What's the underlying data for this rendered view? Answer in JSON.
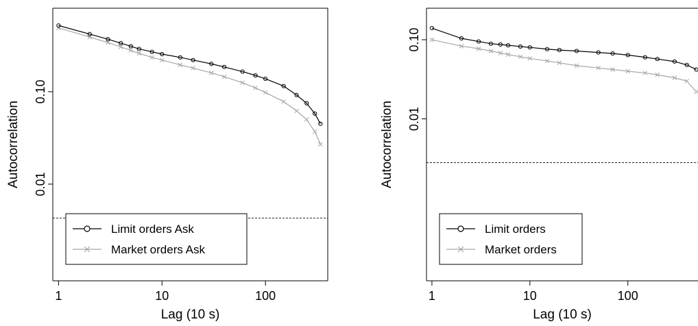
{
  "chart_data": [
    {
      "type": "line",
      "xlabel": "Lag (10 s)",
      "ylabel": "Autocorrelation",
      "x_scale": "log",
      "y_scale": "log",
      "xlim": [
        0.88,
        400
      ],
      "ylim": [
        0.0009,
        0.8
      ],
      "x_ticks": [
        {
          "value": 1,
          "label": "1"
        },
        {
          "value": 10,
          "label": "10"
        },
        {
          "value": 100,
          "label": "100"
        }
      ],
      "y_ticks": [
        {
          "value": 0.01,
          "label": "0.01"
        },
        {
          "value": 0.1,
          "label": "0.10"
        }
      ],
      "reference_line": 0.0043,
      "legend_position": "bottom-left",
      "series": [
        {
          "name": "Limit orders Ask",
          "color": "#000000",
          "marker": "circle",
          "x": [
            1,
            2,
            3,
            4,
            5,
            6,
            8,
            10,
            15,
            20,
            30,
            40,
            60,
            80,
            100,
            150,
            200,
            250,
            300,
            340
          ],
          "y": [
            0.52,
            0.42,
            0.37,
            0.335,
            0.31,
            0.29,
            0.27,
            0.255,
            0.235,
            0.22,
            0.2,
            0.185,
            0.165,
            0.15,
            0.138,
            0.115,
            0.092,
            0.075,
            0.058,
            0.045
          ]
        },
        {
          "name": "Market orders Ask",
          "color": "#a6a6a6",
          "marker": "cross",
          "x": [
            1,
            2,
            3,
            4,
            5,
            6,
            8,
            10,
            15,
            20,
            30,
            40,
            60,
            80,
            100,
            150,
            200,
            250,
            300,
            340
          ],
          "y": [
            0.49,
            0.39,
            0.34,
            0.305,
            0.28,
            0.26,
            0.235,
            0.22,
            0.195,
            0.18,
            0.16,
            0.145,
            0.125,
            0.11,
            0.098,
            0.078,
            0.062,
            0.05,
            0.037,
            0.027
          ]
        }
      ]
    },
    {
      "type": "line",
      "xlabel": "Lag (10 s)",
      "ylabel": "Autocorrelation",
      "x_scale": "log",
      "y_scale": "log",
      "xlim": [
        0.88,
        520
      ],
      "ylim": [
        9e-05,
        0.25
      ],
      "x_ticks": [
        {
          "value": 1,
          "label": "1"
        },
        {
          "value": 10,
          "label": "10"
        },
        {
          "value": 100,
          "label": "100"
        }
      ],
      "y_ticks": [
        {
          "value": 0.01,
          "label": "0.01"
        },
        {
          "value": 0.1,
          "label": "0.10"
        }
      ],
      "reference_line": 0.0028,
      "legend_position": "bottom-left",
      "series": [
        {
          "name": "Limit orders",
          "color": "#000000",
          "marker": "circle",
          "x": [
            1,
            2,
            3,
            4,
            5,
            6,
            8,
            10,
            15,
            20,
            30,
            50,
            70,
            100,
            150,
            200,
            300,
            400,
            500
          ],
          "y": [
            0.14,
            0.104,
            0.095,
            0.089,
            0.087,
            0.085,
            0.082,
            0.08,
            0.076,
            0.074,
            0.072,
            0.069,
            0.067,
            0.064,
            0.06,
            0.057,
            0.053,
            0.048,
            0.042
          ]
        },
        {
          "name": "Market orders",
          "color": "#a6a6a6",
          "marker": "cross",
          "x": [
            1,
            2,
            3,
            4,
            5,
            6,
            8,
            10,
            15,
            20,
            30,
            50,
            70,
            100,
            150,
            200,
            300,
            400,
            500
          ],
          "y": [
            0.1,
            0.083,
            0.077,
            0.072,
            0.068,
            0.065,
            0.061,
            0.058,
            0.054,
            0.051,
            0.047,
            0.044,
            0.042,
            0.04,
            0.038,
            0.036,
            0.033,
            0.03,
            0.022
          ]
        }
      ]
    }
  ]
}
